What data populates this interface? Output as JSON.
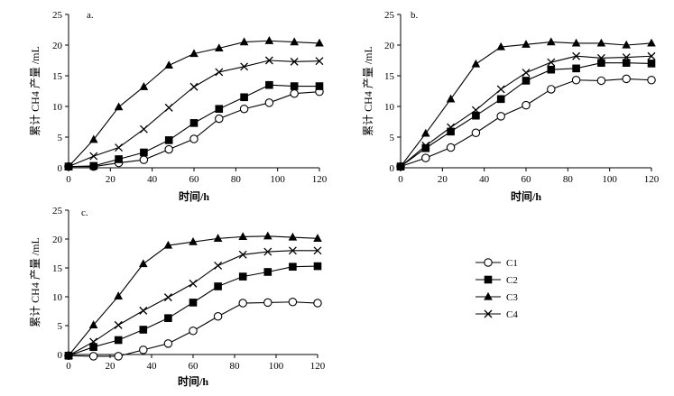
{
  "chart_data": [
    {
      "type": "line",
      "panel_label": "a.",
      "xlabel": "时间/h",
      "ylabel": "累计 CH4 产量 /mL",
      "xlim": [
        0,
        120
      ],
      "ylim": [
        0,
        25
      ],
      "xticks": [
        0,
        20,
        40,
        60,
        80,
        100,
        120
      ],
      "yticks": [
        0,
        5,
        10,
        15,
        20,
        25
      ],
      "grid": false,
      "x": [
        0,
        12,
        24,
        36,
        48,
        60,
        72,
        84,
        96,
        108,
        120
      ],
      "series": [
        {
          "name": "C1",
          "values": [
            0.2,
            0.2,
            0.8,
            1.3,
            3.0,
            4.7,
            8.0,
            9.6,
            10.6,
            12.1,
            12.4
          ]
        },
        {
          "name": "C2",
          "values": [
            0.2,
            0.3,
            1.4,
            2.5,
            4.5,
            7.3,
            9.6,
            11.5,
            13.5,
            13.3,
            13.3
          ]
        },
        {
          "name": "C3",
          "values": [
            0.2,
            4.6,
            9.9,
            13.2,
            16.7,
            18.6,
            19.5,
            20.5,
            20.7,
            20.5,
            20.3
          ]
        },
        {
          "name": "C4",
          "values": [
            0.2,
            1.9,
            3.3,
            6.3,
            9.8,
            13.2,
            15.6,
            16.5,
            17.5,
            17.3,
            17.4
          ]
        }
      ]
    },
    {
      "type": "line",
      "panel_label": "b.",
      "xlabel": "时间/h",
      "ylabel": "累计 CH4 产量 /mL",
      "xlim": [
        0,
        120
      ],
      "ylim": [
        0,
        25
      ],
      "xticks": [
        0,
        20,
        40,
        60,
        80,
        100,
        120
      ],
      "yticks": [
        0,
        5,
        10,
        15,
        20,
        25
      ],
      "grid": false,
      "x": [
        0,
        12,
        24,
        36,
        48,
        60,
        72,
        84,
        96,
        108,
        120
      ],
      "series": [
        {
          "name": "C1",
          "values": [
            0.2,
            1.6,
            3.3,
            5.7,
            8.4,
            10.2,
            12.8,
            14.3,
            14.2,
            14.5,
            14.3
          ]
        },
        {
          "name": "C2",
          "values": [
            0.2,
            3.2,
            5.9,
            8.5,
            11.2,
            14.2,
            16.0,
            16.2,
            17.1,
            17.1,
            17.0
          ]
        },
        {
          "name": "C3",
          "values": [
            0.2,
            5.6,
            11.2,
            16.9,
            19.7,
            20.1,
            20.5,
            20.3,
            20.3,
            20.0,
            20.3
          ]
        },
        {
          "name": "C4",
          "values": [
            0.2,
            3.6,
            6.6,
            9.4,
            12.8,
            15.5,
            17.2,
            18.2,
            17.9,
            18.0,
            18.2
          ]
        }
      ]
    },
    {
      "type": "line",
      "panel_label": "c.",
      "xlabel": "时间/h",
      "ylabel": "累计 CH4 产量 /mL",
      "xlim": [
        0,
        120
      ],
      "ylim": [
        0,
        25
      ],
      "xticks": [
        0,
        20,
        40,
        60,
        80,
        100,
        120
      ],
      "yticks": [
        0,
        5,
        10,
        15,
        20,
        25
      ],
      "grid": false,
      "x": [
        0,
        12,
        24,
        36,
        48,
        60,
        72,
        84,
        96,
        108,
        120
      ],
      "series": [
        {
          "name": "C1",
          "values": [
            -0.2,
            -0.3,
            -0.3,
            0.8,
            1.9,
            4.1,
            6.6,
            8.9,
            9.0,
            9.1,
            8.9
          ]
        },
        {
          "name": "C2",
          "values": [
            -0.2,
            1.3,
            2.5,
            4.3,
            6.3,
            9.0,
            11.8,
            13.5,
            14.3,
            15.2,
            15.3
          ]
        },
        {
          "name": "C3",
          "values": [
            -0.2,
            5.1,
            10.1,
            15.7,
            18.9,
            19.5,
            20.1,
            20.4,
            20.5,
            20.3,
            20.1
          ]
        },
        {
          "name": "C4",
          "values": [
            -0.2,
            2.2,
            5.1,
            7.6,
            9.9,
            12.3,
            15.4,
            17.3,
            17.8,
            18.0,
            18.0
          ]
        }
      ]
    }
  ],
  "legend": {
    "entries": [
      {
        "name": "C1",
        "marker": "open-circle"
      },
      {
        "name": "C2",
        "marker": "filled-square"
      },
      {
        "name": "C3",
        "marker": "filled-triangle"
      },
      {
        "name": "C4",
        "marker": "x-cross"
      }
    ]
  },
  "colors": {
    "line": "#000000",
    "background": "#ffffff"
  }
}
